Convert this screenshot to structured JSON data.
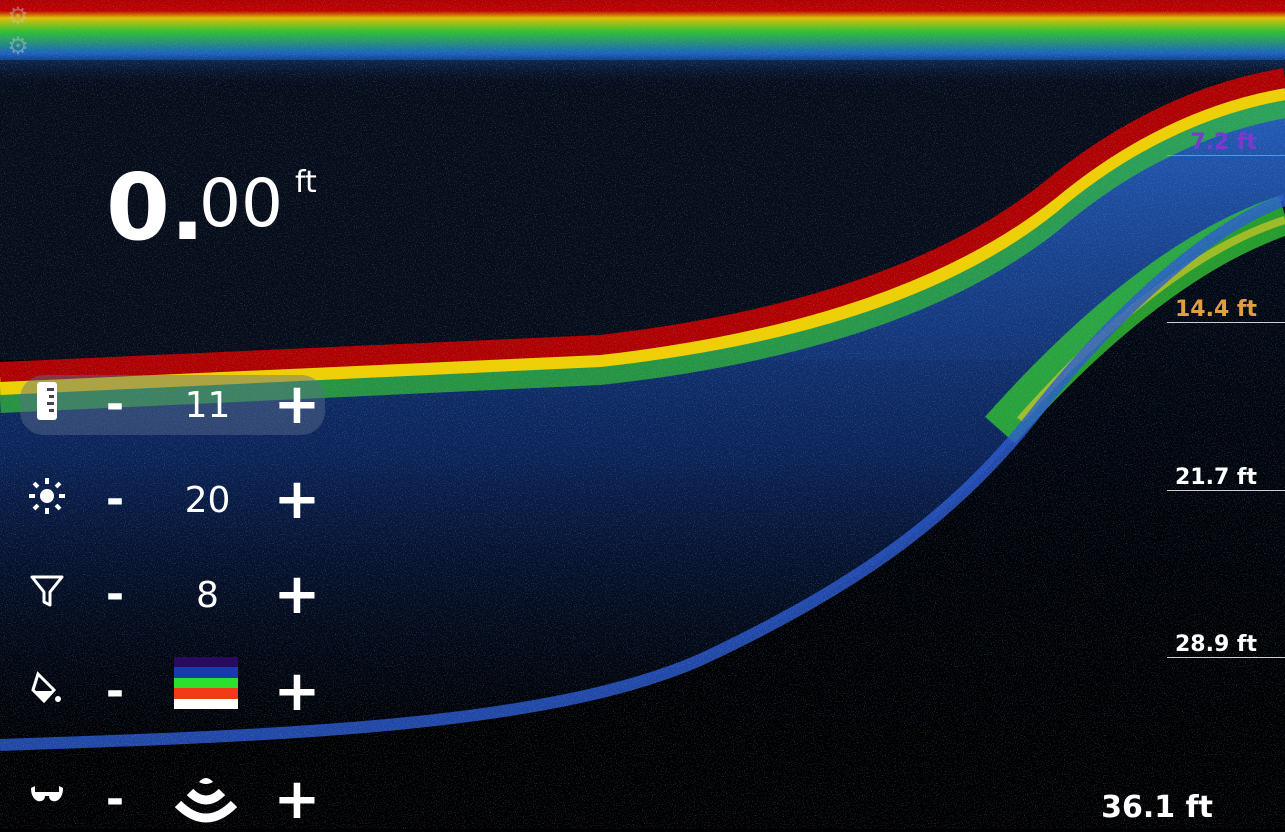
{
  "depth_readout": {
    "integer": "0.",
    "decimal": "00",
    "unit": "ft"
  },
  "controls": [
    {
      "name": "range",
      "icon": "ruler-icon",
      "value": "11",
      "minus": "-",
      "plus": "+"
    },
    {
      "name": "gain",
      "icon": "brightness-icon",
      "value": "20",
      "minus": "-",
      "plus": "+"
    },
    {
      "name": "noise-filter",
      "icon": "filter-icon",
      "value": "8",
      "minus": "-",
      "plus": "+"
    },
    {
      "name": "color-palette",
      "icon": "paint-bucket-icon",
      "palette_colors": [
        "#2a0a5c",
        "#1a3aa8",
        "#2ee02e",
        "#f03a1a",
        "#ffffff"
      ],
      "minus": "-",
      "plus": "+"
    },
    {
      "name": "view-mode",
      "icon": "glasses-icon",
      "value_icon": "sonar-waves-icon",
      "minus": "-",
      "plus": "+"
    }
  ],
  "depth_scale": [
    "7.2 ft",
    "14.4 ft",
    "21.7 ft",
    "28.9 ft",
    "36.1 ft"
  ],
  "depth_scale_colors": [
    "#7a3ad0",
    "#e0a040",
    "#ffffff",
    "#ffffff",
    "#ffffff"
  ]
}
